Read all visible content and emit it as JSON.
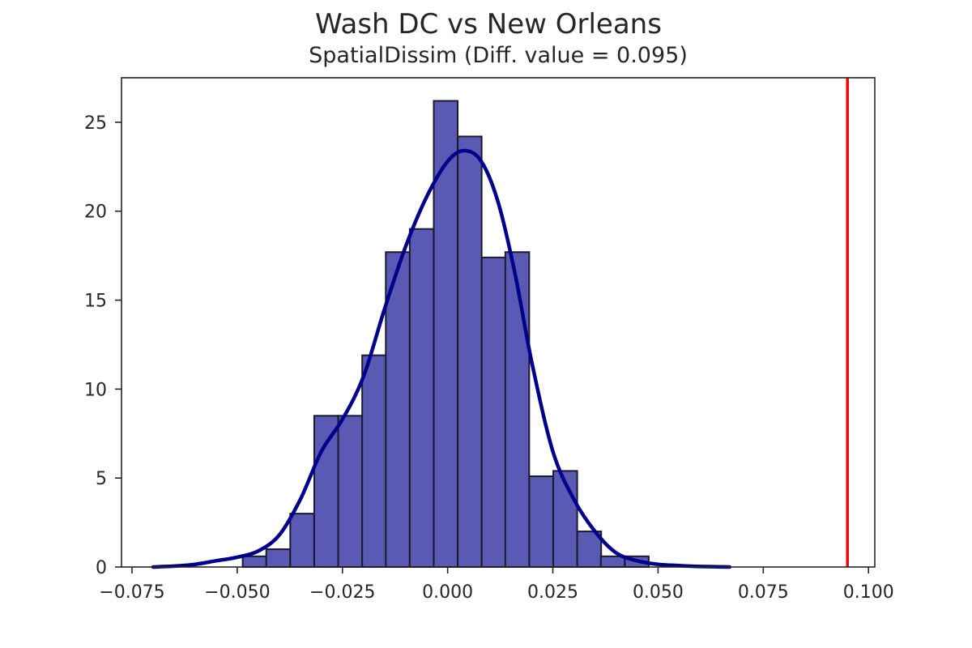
{
  "chart_data": {
    "type": "bar",
    "title": "Wash DC vs New Orleans",
    "subtitle": "SpatialDissim (Diff. value = 0.095)",
    "xlabel": "",
    "ylabel": "",
    "xlim": [
      -0.0775,
      0.1015
    ],
    "ylim": [
      0,
      27.5
    ],
    "xticks": [
      -0.075,
      -0.05,
      -0.025,
      0.0,
      0.025,
      0.05,
      0.075,
      0.1
    ],
    "xtick_labels": [
      "−0.075",
      "−0.050",
      "−0.025",
      "0.000",
      "0.025",
      "0.050",
      "0.075",
      "0.100"
    ],
    "yticks": [
      0,
      5,
      10,
      15,
      20,
      25
    ],
    "ytick_labels": [
      "0",
      "5",
      "10",
      "15",
      "20",
      "25"
    ],
    "grid": false,
    "histogram": {
      "bin_width": 0.00568,
      "bins": [
        {
          "x0": -0.0487,
          "height": 0.6
        },
        {
          "x0": -0.0431,
          "height": 1.0
        },
        {
          "x0": -0.0374,
          "height": 3.0
        },
        {
          "x0": -0.0317,
          "height": 8.5
        },
        {
          "x0": -0.026,
          "height": 8.5
        },
        {
          "x0": -0.0203,
          "height": 11.9
        },
        {
          "x0": -0.0147,
          "height": 17.7
        },
        {
          "x0": -0.009,
          "height": 19.0
        },
        {
          "x0": -0.0033,
          "height": 26.2
        },
        {
          "x0": 0.0024,
          "height": 24.2
        },
        {
          "x0": 0.0081,
          "height": 17.4
        },
        {
          "x0": 0.0137,
          "height": 17.7
        },
        {
          "x0": 0.0194,
          "height": 5.1
        },
        {
          "x0": 0.0251,
          "height": 5.4
        },
        {
          "x0": 0.0308,
          "height": 2.0
        },
        {
          "x0": 0.0364,
          "height": 0.6
        },
        {
          "x0": 0.0421,
          "height": 0.6
        }
      ],
      "fill_color": "#5a5ab4",
      "edge_color": "#1a1a2e"
    },
    "kde": {
      "color": "#00008b",
      "x": [
        -0.07,
        -0.065,
        -0.06,
        -0.055,
        -0.05,
        -0.045,
        -0.04,
        -0.035,
        -0.03,
        -0.025,
        -0.02,
        -0.015,
        -0.01,
        -0.005,
        0.0,
        0.004,
        0.008,
        0.012,
        0.016,
        0.02,
        0.025,
        0.03,
        0.035,
        0.04,
        0.045,
        0.05,
        0.055,
        0.06,
        0.067
      ],
      "y": [
        0.0,
        0.05,
        0.15,
        0.35,
        0.55,
        0.9,
        1.8,
        3.8,
        6.5,
        8.3,
        10.7,
        14.5,
        18.0,
        20.8,
        22.8,
        23.4,
        22.8,
        20.5,
        16.5,
        11.5,
        6.5,
        3.8,
        2.0,
        0.8,
        0.35,
        0.15,
        0.08,
        0.03,
        0.0
      ]
    },
    "vline": {
      "x": 0.095,
      "color": "#ff0000"
    }
  }
}
